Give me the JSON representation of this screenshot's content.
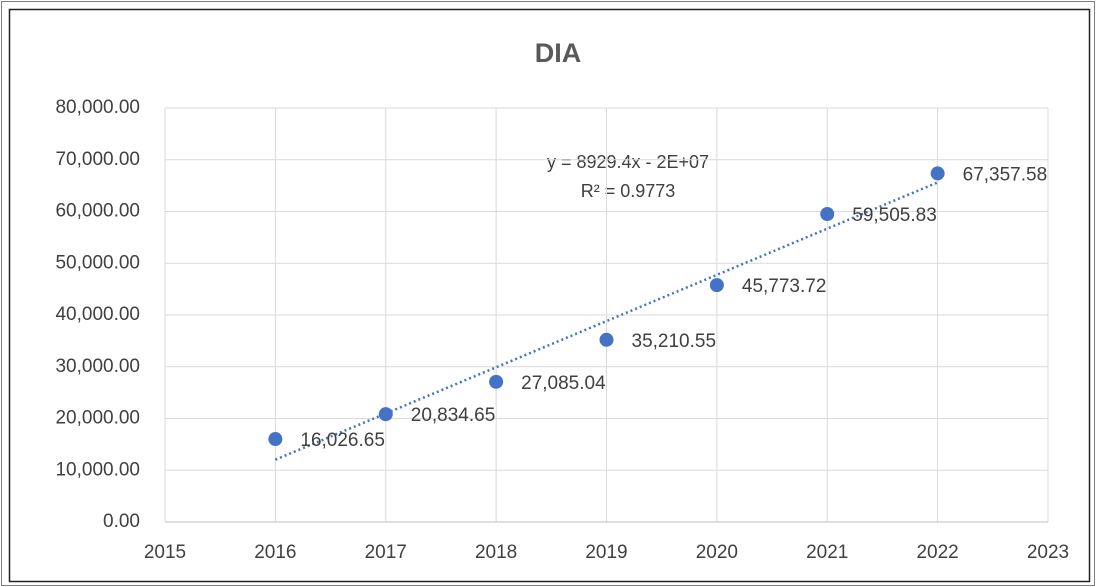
{
  "chart_data": {
    "type": "scatter",
    "title": "DIA",
    "x": [
      2016,
      2017,
      2018,
      2019,
      2020,
      2021,
      2022
    ],
    "values": [
      16026.65,
      20834.65,
      27085.04,
      35210.55,
      45773.72,
      59505.83,
      67357.58
    ],
    "value_labels": [
      "16,026.65",
      "20,834.65",
      "27,085.04",
      "35,210.55",
      "45,773.72",
      "59,505.83",
      "67,357.58"
    ],
    "color": "#4472c4",
    "trendline": {
      "type": "linear",
      "equation": "y = 8929.4x - 2E+07",
      "r_squared": "R² = 0.9773"
    },
    "xlim": [
      2015,
      2023
    ],
    "xticks": [
      2015,
      2016,
      2017,
      2018,
      2019,
      2020,
      2021,
      2022,
      2023
    ],
    "ylim": [
      0,
      80000
    ],
    "yticks": [
      {
        "value": 0,
        "label": "0.00"
      },
      {
        "value": 10000,
        "label": "10,000.00"
      },
      {
        "value": 20000,
        "label": "20,000.00"
      },
      {
        "value": 30000,
        "label": "30,000.00"
      },
      {
        "value": 40000,
        "label": "40,000.00"
      },
      {
        "value": 50000,
        "label": "50,000.00"
      },
      {
        "value": 60000,
        "label": "60,000.00"
      },
      {
        "value": 70000,
        "label": "70,000.00"
      },
      {
        "value": 80000,
        "label": "80,000.00"
      }
    ],
    "grid": true
  }
}
